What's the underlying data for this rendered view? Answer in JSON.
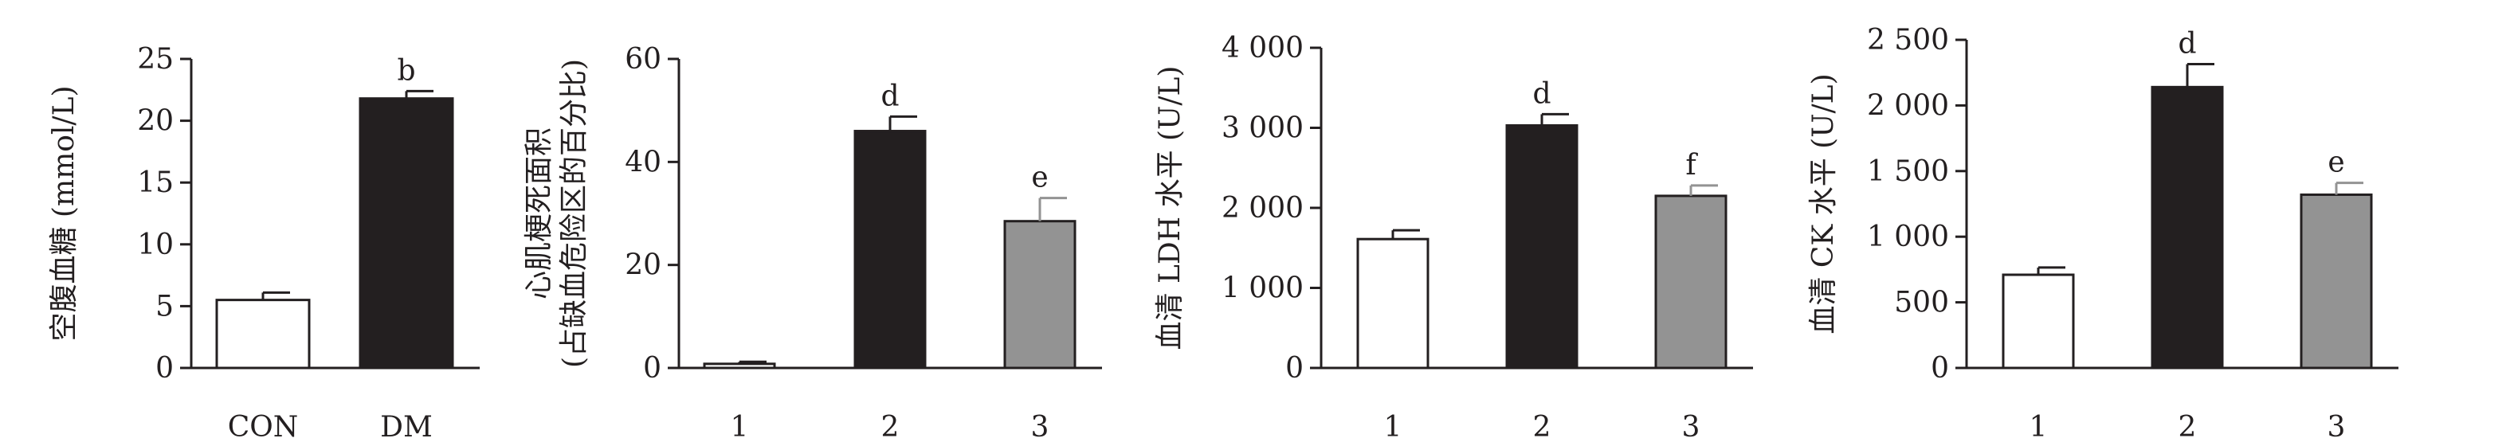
{
  "chart_data": [
    {
      "type": "bar",
      "categories": [
        "CON",
        "DM"
      ],
      "values": [
        5.5,
        21.8
      ],
      "errors": [
        0.6,
        0.6
      ],
      "annotations": [
        "",
        "b"
      ],
      "bar_colors": [
        "#ffffff",
        "#231f20"
      ],
      "ylabel": "空腹血糖 (mmol/L)",
      "ylim": [
        0,
        25
      ],
      "yticks": [
        0,
        5,
        10,
        15,
        20,
        25
      ],
      "ytick_labels": [
        "0",
        "5",
        "10",
        "15",
        "20",
        "25"
      ]
    },
    {
      "type": "bar",
      "categories": [
        "1",
        "2",
        "3"
      ],
      "values": [
        0.8,
        46,
        28.5
      ],
      "errors": [
        0.4,
        2.8,
        4.5
      ],
      "annotations": [
        "",
        "d",
        "e"
      ],
      "bar_colors": [
        "#ffffff",
        "#231f20",
        "#939393"
      ],
      "ylabel": "心肌梗死面积",
      "ylabel2": "(占缺血危险区的百分比)",
      "ylim": [
        0,
        60
      ],
      "yticks": [
        0,
        20,
        40,
        60
      ],
      "ytick_labels": [
        "0",
        "20",
        "40",
        "60"
      ]
    },
    {
      "type": "bar",
      "categories": [
        "1",
        "2",
        "3"
      ],
      "values": [
        1610,
        3030,
        2150
      ],
      "errors": [
        110,
        140,
        130
      ],
      "annotations": [
        "",
        "d",
        "f"
      ],
      "bar_colors": [
        "#ffffff",
        "#231f20",
        "#939393"
      ],
      "ylabel": "血清 LDH 水平 (U/L)",
      "ylim": [
        0,
        4000
      ],
      "yticks": [
        0,
        1000,
        2000,
        3000,
        4000
      ],
      "ytick_labels": [
        "0",
        "1 000",
        "2 000",
        "3 000",
        "4 000"
      ]
    },
    {
      "type": "bar",
      "categories": [
        "1",
        "2",
        "3"
      ],
      "values": [
        710,
        2140,
        1320
      ],
      "errors": [
        55,
        175,
        90
      ],
      "annotations": [
        "",
        "d",
        "e"
      ],
      "bar_colors": [
        "#ffffff",
        "#231f20",
        "#939393"
      ],
      "ylabel": "血清 CK 水平 (U/L)",
      "ylim": [
        0,
        2500
      ],
      "yticks": [
        0,
        500,
        1000,
        1500,
        2000,
        2500
      ],
      "ytick_labels": [
        "0",
        "500",
        "1 000",
        "1 500",
        "2 000",
        "2 500"
      ]
    }
  ]
}
